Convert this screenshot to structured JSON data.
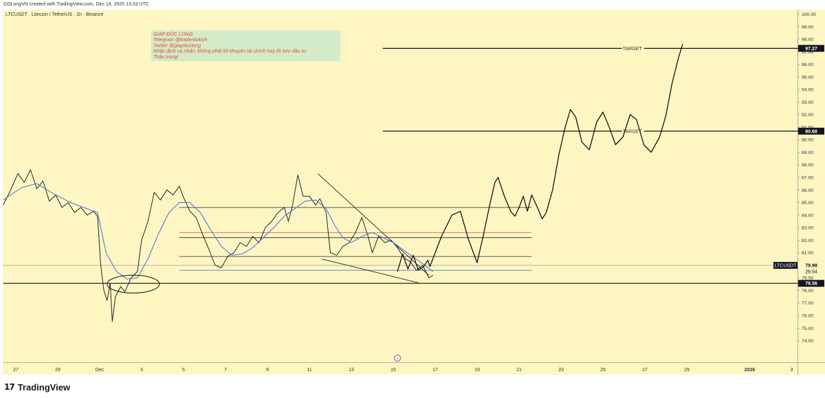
{
  "header": {
    "credit": "GDLongVN created with TradingView.com, Dec 14, 2025 13:33 UTC",
    "pane_title": "LTCUSDT · Litecoin / TetherUS · 1h · Binance"
  },
  "footer": {
    "logo_text": "TradingView",
    "logo_mark": "17"
  },
  "colors": {
    "background": "#fdf6c3",
    "price_line": "#222222",
    "ma_line": "#4f78d8",
    "red_line": "#e05050",
    "annotation_bg": "#d3ecc7",
    "annotation_text": "#e0463c"
  },
  "annotation": {
    "lines": [
      "GIÁP ĐỨC LONG",
      "Telegram @traderdukich",
      "Twitter @giapduclong",
      "Nhận định cá nhân, không phải lời khuyên tài chính hay lôi kéo đầu tư",
      "Thận trọng!"
    ]
  },
  "chart_data": {
    "type": "line",
    "symbol": "LTCUSDT",
    "interval": "1h",
    "y_axis": {
      "range": [
        73.5,
        100.5
      ],
      "ticks": [
        "74.00",
        "75.00",
        "76.00",
        "77.00",
        "78.00",
        "79.00",
        "80.00",
        "81.00",
        "82.00",
        "83.00",
        "84.00",
        "85.00",
        "86.00",
        "87.00",
        "88.00",
        "89.00",
        "90.00",
        "91.00",
        "92.00",
        "93.00",
        "94.00",
        "95.00",
        "96.00",
        "97.00",
        "98.00",
        "99.00",
        "100.00"
      ]
    },
    "x_axis": {
      "ticks": [
        {
          "label": "27",
          "day": 0
        },
        {
          "label": "29",
          "day": 2
        },
        {
          "label": "Dec",
          "day": 4
        },
        {
          "label": "3",
          "day": 6
        },
        {
          "label": "5",
          "day": 8
        },
        {
          "label": "7",
          "day": 10
        },
        {
          "label": "9",
          "day": 12
        },
        {
          "label": "11",
          "day": 14
        },
        {
          "label": "13",
          "day": 16
        },
        {
          "label": "15",
          "day": 18
        },
        {
          "label": "17",
          "day": 20
        },
        {
          "label": "19",
          "day": 22
        },
        {
          "label": "21",
          "day": 24
        },
        {
          "label": "23",
          "day": 26
        },
        {
          "label": "25",
          "day": 28
        },
        {
          "label": "27",
          "day": 30
        },
        {
          "label": "29",
          "day": 32
        },
        {
          "label": "2026",
          "day": 35
        },
        {
          "label": "3",
          "day": 37
        }
      ]
    },
    "price_path": [
      [
        -0.6,
        84.8
      ],
      [
        -0.3,
        85.8
      ],
      [
        0.1,
        87.3
      ],
      [
        0.4,
        86.6
      ],
      [
        0.7,
        87.6
      ],
      [
        1.0,
        86.1
      ],
      [
        1.3,
        86.7
      ],
      [
        1.6,
        85.1
      ],
      [
        1.9,
        85.6
      ],
      [
        2.2,
        84.6
      ],
      [
        2.5,
        85.0
      ],
      [
        2.8,
        84.2
      ],
      [
        3.1,
        84.6
      ],
      [
        3.4,
        84.0
      ],
      [
        3.7,
        84.3
      ],
      [
        3.9,
        83.9
      ],
      [
        4.05,
        80.0
      ],
      [
        4.2,
        78.0
      ],
      [
        4.35,
        77.2
      ],
      [
        4.5,
        78.6
      ],
      [
        4.6,
        75.5
      ],
      [
        4.75,
        77.5
      ],
      [
        5.0,
        78.3
      ],
      [
        5.2,
        77.9
      ],
      [
        5.5,
        79.0
      ],
      [
        5.8,
        79.5
      ],
      [
        6.0,
        82.0
      ],
      [
        6.3,
        83.5
      ],
      [
        6.6,
        85.8
      ],
      [
        6.9,
        85.2
      ],
      [
        7.2,
        86.0
      ],
      [
        7.5,
        85.6
      ],
      [
        7.8,
        86.3
      ],
      [
        8.0,
        85.4
      ],
      [
        8.3,
        84.3
      ],
      [
        8.6,
        83.8
      ],
      [
        8.9,
        82.5
      ],
      [
        9.2,
        81.3
      ],
      [
        9.5,
        80.0
      ],
      [
        9.8,
        79.8
      ],
      [
        10.1,
        80.7
      ],
      [
        10.4,
        81.0
      ],
      [
        10.7,
        81.8
      ],
      [
        11.0,
        81.5
      ],
      [
        11.3,
        82.3
      ],
      [
        11.6,
        81.8
      ],
      [
        11.9,
        83.0
      ],
      [
        12.2,
        83.5
      ],
      [
        12.5,
        84.2
      ],
      [
        12.8,
        84.6
      ],
      [
        13.0,
        83.5
      ],
      [
        13.2,
        84.8
      ],
      [
        13.45,
        87.2
      ],
      [
        13.7,
        85.5
      ],
      [
        14.0,
        85.5
      ],
      [
        14.3,
        84.8
      ],
      [
        14.5,
        85.3
      ],
      [
        14.8,
        84.2
      ],
      [
        15.0,
        81.0
      ],
      [
        15.3,
        80.8
      ],
      [
        15.6,
        81.5
      ],
      [
        15.9,
        81.8
      ],
      [
        16.2,
        82.6
      ],
      [
        16.5,
        83.8
      ],
      [
        16.8,
        82.3
      ],
      [
        17.0,
        81.0
      ],
      [
        17.3,
        82.3
      ],
      [
        17.6,
        81.8
      ],
      [
        17.9,
        82.0
      ],
      [
        18.2,
        81.4
      ],
      [
        18.5,
        80.6
      ],
      [
        18.8,
        80.3
      ],
      [
        19.1,
        79.6
      ],
      [
        19.4,
        80.0
      ],
      [
        19.7,
        79.0
      ],
      [
        19.9,
        79.2
      ]
    ],
    "ma_path": [
      [
        -0.6,
        85.2
      ],
      [
        0.3,
        86.2
      ],
      [
        1.0,
        86.5
      ],
      [
        1.8,
        85.7
      ],
      [
        2.6,
        85.0
      ],
      [
        3.4,
        84.5
      ],
      [
        3.9,
        84.2
      ],
      [
        4.3,
        81.0
      ],
      [
        4.8,
        79.5
      ],
      [
        5.3,
        78.9
      ],
      [
        5.8,
        79.0
      ],
      [
        6.3,
        80.5
      ],
      [
        6.8,
        82.5
      ],
      [
        7.3,
        84.2
      ],
      [
        7.8,
        85.0
      ],
      [
        8.3,
        85.0
      ],
      [
        8.8,
        84.2
      ],
      [
        9.3,
        82.8
      ],
      [
        9.8,
        81.5
      ],
      [
        10.3,
        80.8
      ],
      [
        10.8,
        80.9
      ],
      [
        11.3,
        81.4
      ],
      [
        11.8,
        82.2
      ],
      [
        12.3,
        83.0
      ],
      [
        12.8,
        83.9
      ],
      [
        13.3,
        84.5
      ],
      [
        13.8,
        85.1
      ],
      [
        14.3,
        85.2
      ],
      [
        14.8,
        84.5
      ],
      [
        15.2,
        83.2
      ],
      [
        15.6,
        82.2
      ],
      [
        16.0,
        81.8
      ],
      [
        16.5,
        82.3
      ],
      [
        17.0,
        82.6
      ],
      [
        17.5,
        82.2
      ],
      [
        18.0,
        81.8
      ],
      [
        18.5,
        81.2
      ],
      [
        19.0,
        80.6
      ],
      [
        19.5,
        80.0
      ],
      [
        19.9,
        79.5
      ]
    ],
    "projection": [
      [
        18.2,
        79.5
      ],
      [
        18.45,
        80.9
      ],
      [
        18.7,
        79.7
      ],
      [
        18.95,
        80.8
      ],
      [
        19.2,
        79.6
      ],
      [
        19.45,
        79.9
      ],
      [
        19.65,
        80.4
      ],
      [
        19.75,
        79.9
      ],
      [
        20.0,
        81.0
      ],
      [
        20.3,
        82.3
      ],
      [
        20.8,
        84.0
      ],
      [
        21.2,
        84.3
      ],
      [
        21.6,
        82.0
      ],
      [
        22.0,
        80.2
      ],
      [
        22.3,
        82.4
      ],
      [
        22.6,
        84.8
      ],
      [
        22.85,
        86.6
      ],
      [
        23.0,
        87.0
      ],
      [
        23.3,
        85.5
      ],
      [
        23.6,
        84.3
      ],
      [
        23.8,
        83.9
      ],
      [
        24.0,
        84.6
      ],
      [
        24.2,
        85.5
      ],
      [
        24.4,
        84.3
      ],
      [
        24.6,
        85.6
      ],
      [
        24.85,
        84.7
      ],
      [
        25.1,
        83.7
      ],
      [
        25.3,
        84.2
      ],
      [
        25.6,
        86.0
      ],
      [
        25.9,
        88.8
      ],
      [
        26.2,
        91.0
      ],
      [
        26.45,
        92.4
      ],
      [
        26.7,
        91.8
      ],
      [
        27.0,
        89.8
      ],
      [
        27.35,
        89.2
      ],
      [
        27.7,
        91.4
      ],
      [
        28.0,
        92.2
      ],
      [
        28.3,
        91.0
      ],
      [
        28.6,
        89.6
      ],
      [
        28.95,
        90.2
      ],
      [
        29.3,
        92.0
      ],
      [
        29.6,
        91.6
      ],
      [
        29.95,
        89.6
      ],
      [
        30.3,
        89.0
      ],
      [
        30.7,
        90.2
      ],
      [
        31.0,
        91.9
      ],
      [
        31.3,
        94.5
      ],
      [
        31.6,
        96.5
      ],
      [
        31.8,
        97.6
      ]
    ],
    "levels": [
      {
        "price": 97.27,
        "label": "97.27",
        "from_day": 17.5,
        "to_day": 38.2,
        "text": "TARGET",
        "text_day": 29.4
      },
      {
        "price": 90.68,
        "label": "90.68",
        "from_day": 17.5,
        "to_day": 38.2,
        "text": "TARGET",
        "text_day": 29.4
      },
      {
        "price": 78.56,
        "label": "78.56",
        "from_day": -0.6,
        "to_day": 38.2,
        "text": "",
        "text_day": 0
      }
    ],
    "box_lines": [
      {
        "price": 84.6,
        "from_day": 7.8,
        "to_day": 24.6,
        "color": "#222222"
      },
      {
        "price": 82.6,
        "from_day": 7.8,
        "to_day": 24.6,
        "color": "#e05050"
      },
      {
        "price": 82.2,
        "from_day": 7.8,
        "to_day": 24.6,
        "color": "#222222"
      },
      {
        "price": 80.7,
        "from_day": 7.8,
        "to_day": 24.6,
        "color": "#222222"
      },
      {
        "price": 79.6,
        "from_day": 7.8,
        "to_day": 24.6,
        "color": "#4f78d8"
      }
    ],
    "wedge": {
      "upper": [
        [
          14.4,
          87.3
        ],
        [
          19.7,
          79.2
        ]
      ],
      "lower": [
        [
          14.6,
          80.5
        ],
        [
          19.2,
          78.6
        ]
      ]
    },
    "circle": {
      "day": 5.6,
      "price": 78.5
    },
    "current_price": {
      "label": "LTCUSDT",
      "value": "79.99",
      "countdown": "26:54",
      "price": 79.99
    },
    "event_marker": {
      "day": 18.2,
      "glyph": "⚡"
    }
  }
}
